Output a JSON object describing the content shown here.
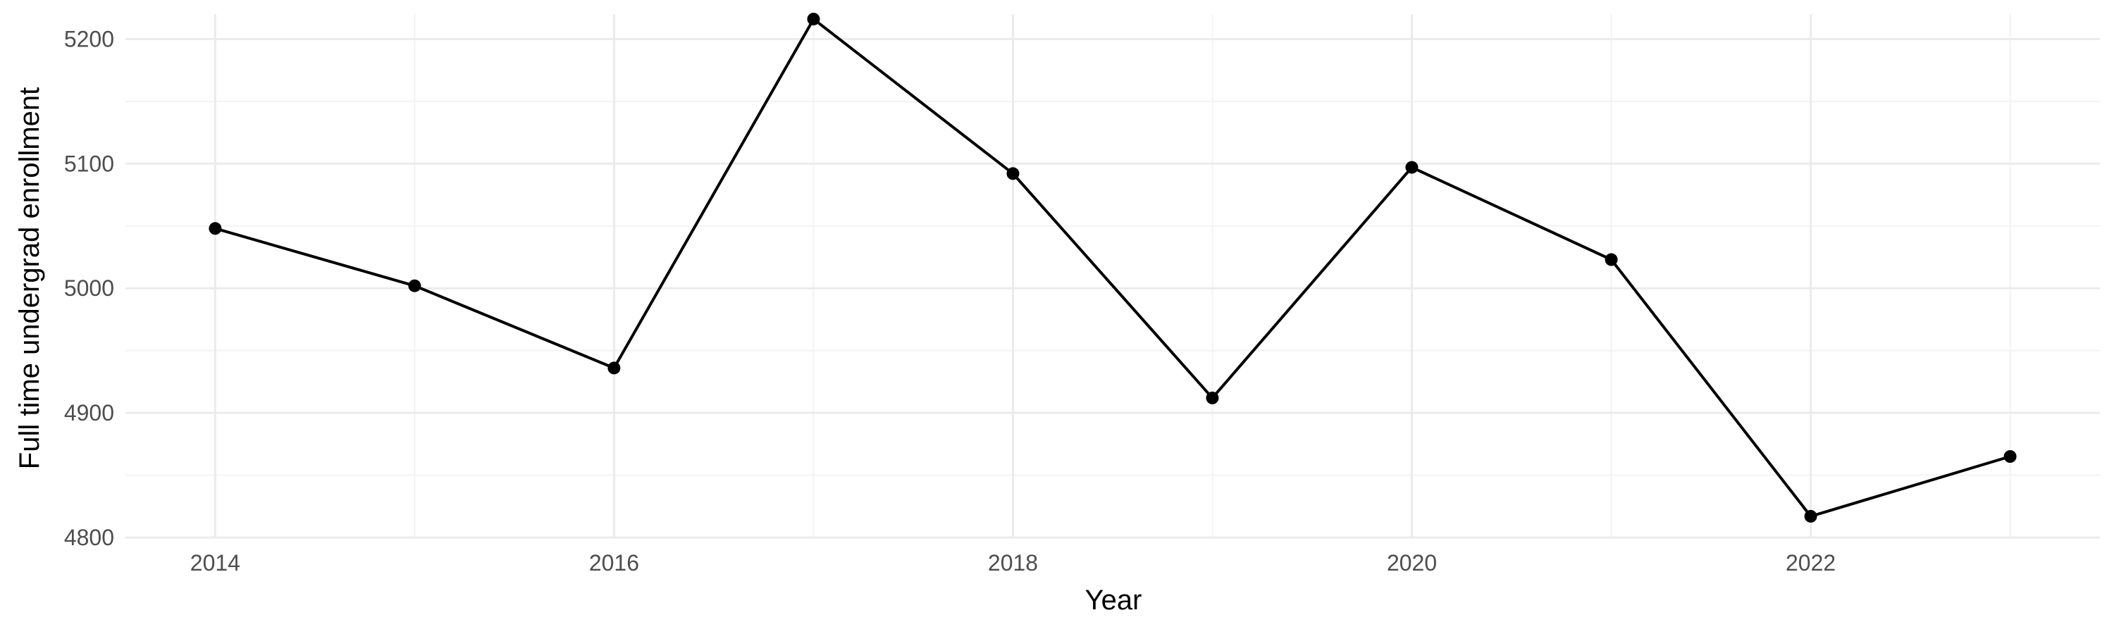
{
  "chart_data": {
    "type": "line",
    "title": "",
    "xlabel": "Year",
    "ylabel": "Full time undergrad enrollment",
    "x": [
      2014,
      2015,
      2016,
      2017,
      2018,
      2019,
      2020,
      2021,
      2022,
      2023
    ],
    "series": [
      {
        "values": [
          5048,
          5002,
          4936,
          5216,
          5092,
          4912,
          5097,
          5023,
          4817,
          4865
        ]
      }
    ],
    "xlim": [
      2013.55,
      2023.45
    ],
    "ylim": [
      4800,
      5220
    ],
    "x_ticks": [
      2014,
      2016,
      2018,
      2020,
      2022
    ],
    "x_tick_labels": [
      "2014",
      "2016",
      "2018",
      "2020",
      "2022"
    ],
    "y_ticks": [
      4800,
      4900,
      5000,
      5100,
      5200
    ],
    "y_tick_labels": [
      "4800",
      "4900",
      "5000",
      "5100",
      "5200"
    ],
    "grid": true,
    "legend": "none",
    "colors": {
      "line": "#000000",
      "point": "#000000",
      "grid_major": "#ebebeb",
      "grid_minor": "#f3f3f3",
      "background": "#ffffff"
    }
  }
}
